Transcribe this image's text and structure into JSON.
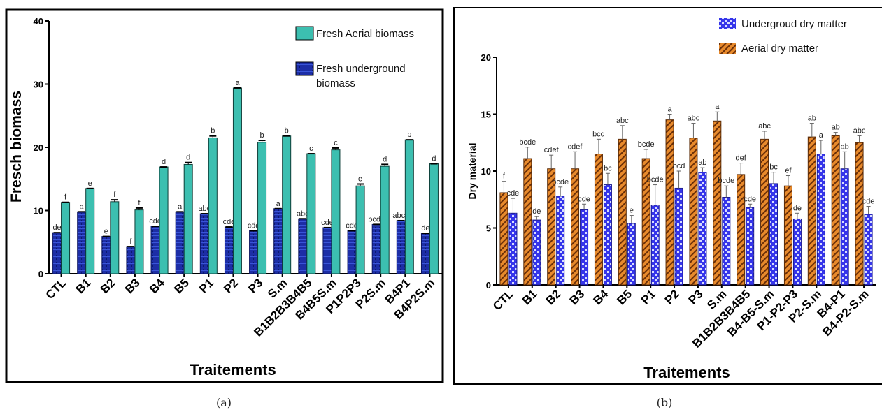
{
  "panel_a": {
    "caption": "(a)",
    "legend": [
      "Fresh Aerial biomass",
      "Fresh underground",
      "biomass"
    ],
    "colors": {
      "aerial": "#3cbfb0",
      "underground": "#1d2ea6"
    },
    "chart_data": {
      "type": "bar",
      "ylabel": "Fresch biomass",
      "xlabel": "Traitements",
      "ylim": [
        0,
        40
      ],
      "yticks": [
        0,
        10,
        20,
        30,
        40
      ],
      "grid": false,
      "legend_position": "top-right",
      "categories": [
        "CTL",
        "B1",
        "B2",
        "B3",
        "B4",
        "B5",
        "P1",
        "P2",
        "P3",
        "S.m",
        "B1B2B3B4B5",
        "B4B5S.m",
        "P1P2P3",
        "P2S.m",
        "B4P1",
        "B4P2S.m"
      ],
      "series": [
        {
          "name": "Fresh underground biomass",
          "values": [
            6.5,
            9.8,
            5.9,
            4.3,
            7.5,
            9.8,
            9.5,
            7.4,
            6.8,
            10.3,
            8.7,
            7.3,
            6.8,
            7.8,
            8.4,
            6.4
          ],
          "letters": [
            "de",
            "a",
            "e",
            "f",
            "cde",
            "a",
            "abc",
            "cde",
            "cde",
            "a",
            "abc",
            "cde",
            "cde",
            "bcde",
            "abcd",
            "de"
          ]
        },
        {
          "name": "Fresh Aerial biomass",
          "values": [
            11.3,
            13.5,
            11.4,
            10.1,
            16.9,
            17.3,
            21.5,
            29.4,
            20.8,
            21.8,
            19.0,
            19.6,
            13.9,
            17.0,
            21.2,
            17.4
          ],
          "errors": [
            0,
            0,
            0.3,
            0.3,
            0,
            0.3,
            0.3,
            0,
            0.3,
            0,
            0,
            0.3,
            0.3,
            0.3,
            0,
            0
          ],
          "letters": [
            "f",
            "e",
            "f",
            "f",
            "d",
            "d",
            "b",
            "a",
            "b",
            "b",
            "c",
            "c",
            "e",
            "d",
            "b",
            "d"
          ]
        }
      ]
    }
  },
  "panel_b": {
    "caption": "(b)",
    "legend": [
      "Undergroud dry matter",
      "Aerial dry matter"
    ],
    "colors": {
      "aerial": "#e07a1e",
      "underground": "#3535ea"
    },
    "chart_data": {
      "type": "bar",
      "ylabel": "Dry material",
      "xlabel": "Traitements",
      "ylim": [
        0,
        20
      ],
      "yticks": [
        0,
        5,
        10,
        15,
        20
      ],
      "grid": false,
      "legend_position": "top-right",
      "categories": [
        "CTL",
        "B1",
        "B2",
        "B3",
        "B4",
        "B5",
        "P1",
        "P2",
        "P3",
        "S.m",
        "B1B2B3B4B5",
        "B4-B5-S.m",
        "P1-P2-P3",
        "P2-S.m",
        "B4-P1",
        "B4-P2-S.m"
      ],
      "series": [
        {
          "name": "Aerial dry matter",
          "values": [
            8.1,
            11.1,
            10.2,
            10.2,
            11.5,
            12.8,
            11.1,
            14.5,
            12.9,
            14.4,
            9.7,
            12.8,
            8.7,
            13.0,
            13.1,
            12.5
          ],
          "errors": [
            1.0,
            1.0,
            1.2,
            1.5,
            1.3,
            1.2,
            0.8,
            0.5,
            1.3,
            0.8,
            1.0,
            0.7,
            0.9,
            1.2,
            0.3,
            0.6
          ],
          "letters": [
            "f",
            "bcde",
            "cdef",
            "cdef",
            "bcd",
            "abc",
            "bcde",
            "a",
            "abc",
            "a",
            "def",
            "abc",
            "ef",
            "ab",
            "ab",
            "abc"
          ]
        },
        {
          "name": "Undergroud dry matter",
          "values": [
            6.3,
            5.7,
            7.8,
            6.6,
            8.8,
            5.4,
            7.0,
            8.5,
            9.9,
            7.7,
            6.8,
            8.9,
            5.8,
            11.5,
            10.2,
            6.2
          ],
          "errors": [
            1.3,
            0.3,
            0.8,
            0.5,
            1.0,
            0.7,
            1.8,
            1.5,
            0.4,
            1.0,
            0.3,
            1.0,
            0.5,
            1.2,
            1.5,
            0.7
          ],
          "letters": [
            "cde",
            "de",
            "bcde",
            "cde",
            "bc",
            "e",
            "bcde",
            "bcd",
            "ab",
            "bcde",
            "cde",
            "bc",
            "de",
            "a",
            "ab",
            "cde"
          ]
        }
      ]
    }
  }
}
